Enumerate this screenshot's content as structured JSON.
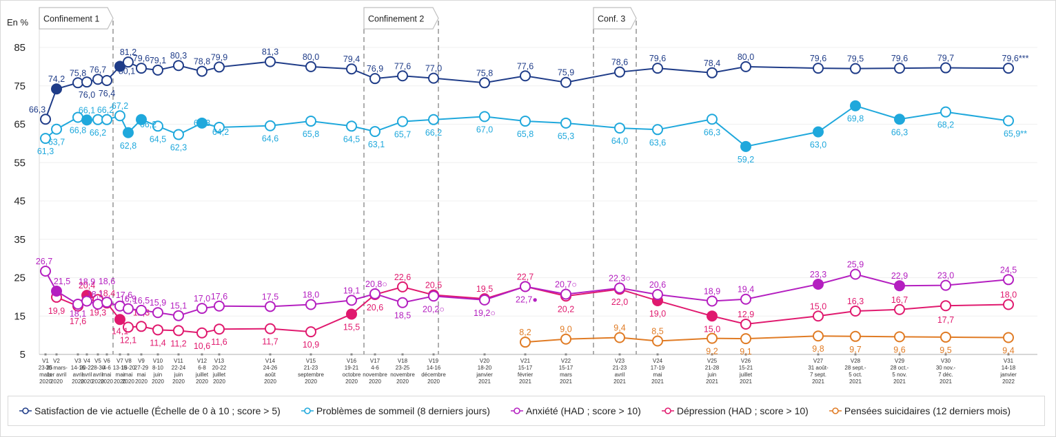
{
  "chart_data": {
    "type": "line",
    "title": "",
    "ylabel": "En %",
    "xlabel": "",
    "ylim": [
      5,
      85
    ],
    "yticks": [
      5,
      15,
      25,
      35,
      45,
      55,
      65,
      75,
      85
    ],
    "grid": true,
    "legend_position": "bottom",
    "categories": [
      {
        "wave": "V1",
        "lines": [
          "23-25",
          "mars",
          "2020"
        ]
      },
      {
        "wave": "V2",
        "lines": [
          "30 mars-",
          "1er avril",
          "2020"
        ]
      },
      {
        "wave": "V3",
        "lines": [
          "14-16",
          "avril",
          "2020"
        ]
      },
      {
        "wave": "V4",
        "lines": [
          "20-22",
          "avril",
          "2020"
        ]
      },
      {
        "wave": "V5",
        "lines": [
          "28-30",
          "avril",
          "2020"
        ]
      },
      {
        "wave": "V6",
        "lines": [
          "4-6",
          "mai",
          "2020"
        ]
      },
      {
        "wave": "V7",
        "lines": [
          "13-15",
          "mai",
          "2020"
        ]
      },
      {
        "wave": "V8",
        "lines": [
          "18-20",
          "mai",
          "2020"
        ]
      },
      {
        "wave": "V9",
        "lines": [
          "27-29",
          "mai",
          "2020"
        ]
      },
      {
        "wave": "V10",
        "lines": [
          "8-10",
          "juin",
          "2020"
        ]
      },
      {
        "wave": "V11",
        "lines": [
          "22-24",
          "juin",
          "2020"
        ]
      },
      {
        "wave": "V12",
        "lines": [
          "6-8",
          "juillet",
          "2020"
        ]
      },
      {
        "wave": "V13",
        "lines": [
          "20-22",
          "juillet",
          "2020"
        ]
      },
      {
        "wave": "V14",
        "lines": [
          "24-26",
          "août",
          "2020"
        ]
      },
      {
        "wave": "V15",
        "lines": [
          "21-23",
          "septembre",
          "2020"
        ]
      },
      {
        "wave": "V16",
        "lines": [
          "19-21",
          "octobre",
          "2020"
        ]
      },
      {
        "wave": "V17",
        "lines": [
          "4-6",
          "novembre",
          "2020"
        ]
      },
      {
        "wave": "V18",
        "lines": [
          "23-25",
          "novembre",
          "2020"
        ]
      },
      {
        "wave": "V19",
        "lines": [
          "14-16",
          "décembre",
          "2020"
        ]
      },
      {
        "wave": "V20",
        "lines": [
          "18-20",
          "janvier",
          "2021"
        ]
      },
      {
        "wave": "V21",
        "lines": [
          "15-17",
          "février",
          "2021"
        ]
      },
      {
        "wave": "V22",
        "lines": [
          "15-17",
          "mars",
          "2021"
        ]
      },
      {
        "wave": "V23",
        "lines": [
          "21-23",
          "avril",
          "2021"
        ]
      },
      {
        "wave": "V24",
        "lines": [
          "17-19",
          "mai",
          "2021"
        ]
      },
      {
        "wave": "V25",
        "lines": [
          "21-28",
          "juin",
          "2021"
        ]
      },
      {
        "wave": "V26",
        "lines": [
          "15-21",
          "juillet",
          "2021"
        ]
      },
      {
        "wave": "V27",
        "lines": [
          "31 août-",
          "7 sept.",
          "2021"
        ]
      },
      {
        "wave": "V28",
        "lines": [
          "28 sept.-",
          "5 oct.",
          "2021"
        ]
      },
      {
        "wave": "V29",
        "lines": [
          "28 oct.-",
          "5 nov.",
          "2021"
        ]
      },
      {
        "wave": "V30",
        "lines": [
          "30 nov.-",
          "7 déc.",
          "2021"
        ]
      },
      {
        "wave": "V31",
        "lines": [
          "14-18",
          "janvier",
          "2022"
        ]
      }
    ],
    "lockdowns": [
      {
        "label": "Confinement 1",
        "start_wave": "V1",
        "end_wave": "V7"
      },
      {
        "label": "Confinement 2",
        "start_wave": "V17",
        "end_wave": "V19"
      },
      {
        "label": "Conf. 3",
        "start_wave": "V23",
        "end_wave": "V24"
      }
    ],
    "series": [
      {
        "name": "Satisfaction de vie actuelle (Échelle de 0 à 10 ; score > 5)",
        "key": "satisfaction",
        "color": "#1f3c88",
        "values": [
          66.3,
          74.2,
          75.8,
          76.0,
          76.7,
          76.4,
          80.1,
          81.2,
          79.6,
          79.1,
          80.3,
          78.8,
          79.9,
          81.3,
          80.0,
          79.4,
          76.9,
          77.6,
          77.0,
          75.8,
          77.6,
          75.9,
          78.6,
          79.6,
          78.4,
          80.0,
          79.6,
          79.5,
          79.6,
          79.7,
          79.6
        ],
        "labels": [
          "66,3",
          "74,2",
          "75,8",
          "76,0",
          "76,7",
          "76,4",
          "80,1",
          "81,2",
          "79,6",
          "79,1",
          "80,3",
          "78,8",
          "79,9",
          "81,3",
          "80,0",
          "79,4",
          "76,9",
          "77,6",
          "77,0",
          "75,8",
          "77,6",
          "75,9",
          "78,6",
          "79,6",
          "78,4",
          "80,0",
          "79,6",
          "79,5",
          "79,6",
          "79,7",
          "79,6***"
        ],
        "filled": [
          1,
          6
        ]
      },
      {
        "name": "Problèmes de sommeil (8 derniers jours)",
        "key": "sommeil",
        "color": "#1fa8dc",
        "values": [
          61.3,
          63.7,
          66.8,
          66.1,
          66.2,
          66.2,
          67.2,
          62.8,
          66.2,
          64.5,
          62.3,
          65.3,
          64.2,
          64.6,
          65.8,
          64.5,
          63.1,
          65.7,
          66.2,
          67.0,
          65.8,
          65.3,
          64.0,
          63.6,
          66.3,
          59.2,
          63.0,
          69.8,
          66.3,
          68.2,
          65.9
        ],
        "labels": [
          "61,3",
          "63,7",
          "66,8",
          "66,1",
          "66,2",
          "66,2",
          "67,2",
          "62,8",
          "66,2",
          "64,5",
          "62,3",
          "65,3",
          "64,2",
          "64,6",
          "65,8",
          "64,5",
          "63,1",
          "65,7",
          "66,2",
          "67,0",
          "65,8",
          "65,3",
          "64,0",
          "63,6",
          "66,3",
          "59,2",
          "63,0",
          "69,8",
          "66,3",
          "68,2",
          "65,9**"
        ],
        "filled": [
          3,
          7,
          8,
          11,
          25,
          26,
          27,
          28
        ]
      },
      {
        "name": "Anxiété (HAD ; score > 10)",
        "key": "anxiete",
        "color": "#b41fc0",
        "values": [
          26.7,
          21.5,
          18.1,
          18.9,
          18.1,
          18.6,
          17.6,
          16.9,
          16.5,
          15.9,
          15.1,
          17.0,
          17.6,
          17.5,
          18.0,
          19.1,
          20.8,
          18.5,
          20.2,
          19.2,
          22.7,
          20.7,
          22.3,
          20.6,
          18.9,
          19.4,
          23.3,
          25.9,
          22.9,
          23.0,
          24.5
        ],
        "labels": [
          "26,7",
          "21,5",
          "18,1",
          "18,9",
          "18,1",
          "18,6",
          "17,6",
          "16,9",
          "16,5",
          "15,9",
          "15,1",
          "17,0",
          "17,6",
          "17,5",
          "18,0",
          "19,1",
          "20,8○",
          "18,5",
          "20,2○",
          "19,2○",
          "22,7●",
          "20,7○",
          "22,3○",
          "20,6",
          "18,9",
          "19,4",
          "23,3",
          "25,9",
          "22,9",
          "23,0",
          "24,5"
        ],
        "filled": [
          1,
          26,
          28
        ]
      },
      {
        "name": "Dépression (HAD ; score > 10)",
        "key": "depression",
        "color": "#e0196e",
        "values": [
          null,
          19.9,
          17.6,
          20.4,
          19.3,
          18.4,
          14.1,
          12.1,
          12.3,
          11.4,
          11.2,
          10.6,
          11.6,
          11.7,
          10.9,
          15.5,
          20.6,
          22.6,
          20.5,
          19.5,
          22.7,
          20.2,
          22.0,
          19.0,
          15.0,
          12.9,
          15.0,
          16.3,
          16.7,
          17.7,
          18.0
        ],
        "labels": [
          null,
          "19,9",
          "17,6",
          "20,4",
          "19,3",
          "18,4",
          "14,1",
          "12,1",
          "12,3",
          "11,4",
          "11,2",
          "10,6",
          "11,6",
          "11,7",
          "10,9",
          "15,5",
          "20,6",
          "22,6",
          "20,5",
          "19,5",
          "22,7",
          "20,2",
          "22,0",
          "19,0",
          "15,0",
          "12,9",
          "15,0",
          "16,3",
          "16,7",
          "17,7",
          "18,0"
        ],
        "filled": [
          3,
          6,
          15,
          16,
          20,
          23,
          24
        ]
      },
      {
        "name": "Pensées suicidaires (12 derniers mois)",
        "key": "suicidaires",
        "color": "#e07b24",
        "values": [
          null,
          null,
          null,
          null,
          null,
          null,
          null,
          null,
          null,
          null,
          null,
          null,
          null,
          null,
          null,
          null,
          null,
          null,
          null,
          null,
          8.2,
          9.0,
          9.4,
          8.5,
          9.2,
          9.1,
          9.8,
          9.7,
          9.6,
          9.5,
          9.4
        ],
        "labels": [
          null,
          null,
          null,
          null,
          null,
          null,
          null,
          null,
          null,
          null,
          null,
          null,
          null,
          null,
          null,
          null,
          null,
          null,
          null,
          null,
          "8,2",
          "9,0",
          "9,4",
          "8,5",
          "9,2",
          "9,1",
          "9,8",
          "9,7",
          "9,6",
          "9,5",
          "9,4"
        ],
        "filled": []
      }
    ]
  }
}
